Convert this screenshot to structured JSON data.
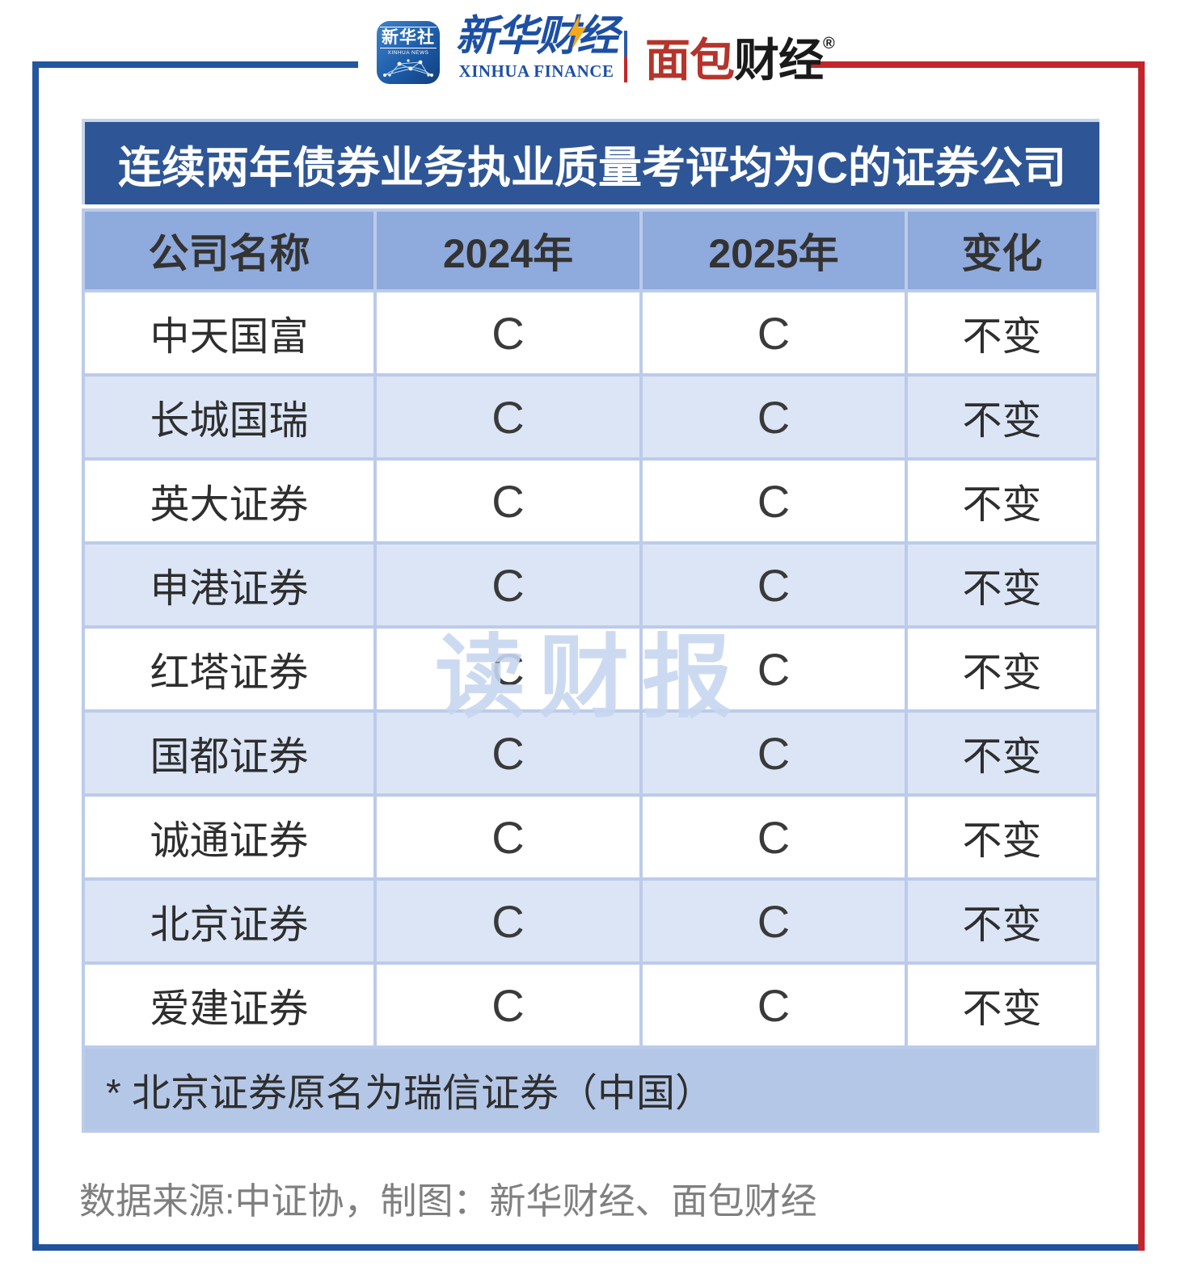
{
  "brand": {
    "xinhua_app": {
      "title": "新华社",
      "subtitle": "XINHUA NEWS"
    },
    "xinhua_finance": {
      "title": "新华财经",
      "subtitle": "XINHUA FINANCE"
    },
    "bread_finance": {
      "title_red": "面包",
      "title_black": "财经",
      "reg_mark": "®"
    }
  },
  "title": "连续两年债券业务执业质量考评均为C的证券公司",
  "watermark": "读财报",
  "table": {
    "columns": [
      "公司名称",
      "2024年",
      "2025年",
      "变化"
    ],
    "rows": [
      {
        "company": "中天国富",
        "y2024": "C",
        "y2025": "C",
        "change": "不变"
      },
      {
        "company": "长城国瑞",
        "y2024": "C",
        "y2025": "C",
        "change": "不变"
      },
      {
        "company": "英大证券",
        "y2024": "C",
        "y2025": "C",
        "change": "不变"
      },
      {
        "company": "申港证券",
        "y2024": "C",
        "y2025": "C",
        "change": "不变"
      },
      {
        "company": "红塔证券",
        "y2024": "C",
        "y2025": "C",
        "change": "不变"
      },
      {
        "company": "国都证券",
        "y2024": "C",
        "y2025": "C",
        "change": "不变"
      },
      {
        "company": "诚通证券",
        "y2024": "C",
        "y2025": "C",
        "change": "不变"
      },
      {
        "company": "北京证券",
        "y2024": "C",
        "y2025": "C",
        "change": "不变"
      },
      {
        "company": "爱建证券",
        "y2024": "C",
        "y2025": "C",
        "change": "不变"
      }
    ],
    "footnote": "* 北京证券原名为瑞信证券（中国）"
  },
  "source": "数据来源:中证协，制图：新华财经、面包财经",
  "colors": {
    "title_bar_bg": "#2E5696",
    "header_bg": "#8FAADC",
    "row_alt_bg": "#DBE5F6",
    "footnote_bg": "#B4C7E7",
    "gridline": "#BCCBE9",
    "frame_blue": "#2257A0",
    "frame_red": "#C2252B",
    "watermark_blue": "#C7D6F0",
    "logo_red": "#B5342B",
    "logo_blue": "#1D4FA5",
    "text_dark": "#2E2E2E",
    "source_gray": "#7F7F7F"
  },
  "chart_data": {
    "type": "table",
    "title": "连续两年债券业务执业质量考评均为C的证券公司",
    "columns": [
      "公司名称",
      "2024年",
      "2025年",
      "变化"
    ],
    "rows": [
      [
        "中天国富",
        "C",
        "C",
        "不变"
      ],
      [
        "长城国瑞",
        "C",
        "C",
        "不变"
      ],
      [
        "英大证券",
        "C",
        "C",
        "不变"
      ],
      [
        "申港证券",
        "C",
        "C",
        "不变"
      ],
      [
        "红塔证券",
        "C",
        "C",
        "不变"
      ],
      [
        "国都证券",
        "C",
        "C",
        "不变"
      ],
      [
        "诚通证券",
        "C",
        "C",
        "不变"
      ],
      [
        "北京证券",
        "C",
        "C",
        "不变"
      ],
      [
        "爱建证券",
        "C",
        "C",
        "不变"
      ]
    ],
    "footnote": "* 北京证券原名为瑞信证券（中国）",
    "source": "数据来源:中证协，制图：新华财经、面包财经"
  }
}
